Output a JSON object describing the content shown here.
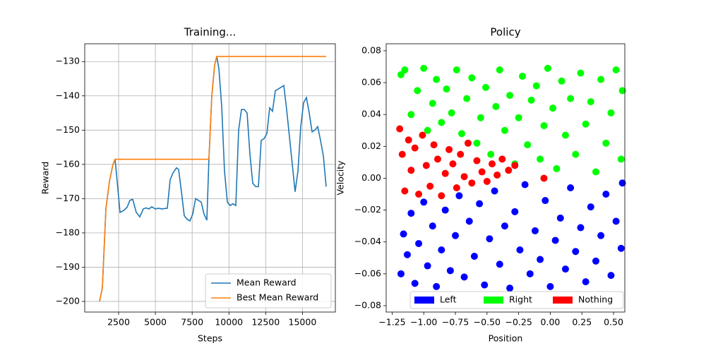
{
  "chart_data": [
    {
      "type": "line",
      "title": "Training...",
      "xlabel": "Steps",
      "ylabel": "Reward",
      "xlim": [
        196,
        17236
      ],
      "ylim": [
        -203.1,
        -124.8
      ],
      "xticks": [
        2500,
        5000,
        7500,
        10000,
        12500,
        15000
      ],
      "yticks": [
        {
          "value": -200,
          "label": "−200"
        },
        {
          "value": -190,
          "label": "−190"
        },
        {
          "value": -180,
          "label": "−180"
        },
        {
          "value": -170,
          "label": "−170"
        },
        {
          "value": -160,
          "label": "−160"
        },
        {
          "value": -150,
          "label": "−150"
        },
        {
          "value": -140,
          "label": "−140"
        },
        {
          "value": -130,
          "label": "−130"
        }
      ],
      "grid": true,
      "legend": "lower right",
      "series": [
        {
          "name": "Mean Reward",
          "color": "#1f77b4",
          "x": [
            1204,
            1396,
            1636,
            1876,
            2116,
            2260,
            2404,
            2596,
            2836,
            3076,
            3268,
            3460,
            3700,
            3940,
            4180,
            4372,
            4564,
            4756,
            4996,
            5236,
            5428,
            5620,
            5812,
            6004,
            6196,
            6436,
            6580,
            6772,
            6964,
            7156,
            7348,
            7540,
            7732,
            7924,
            8116,
            8308,
            8500,
            8644,
            8836,
            9028,
            9172,
            9316,
            9508,
            9700,
            9892,
            10084,
            10276,
            10468,
            10660,
            10852,
            11044,
            11236,
            11428,
            11620,
            11812,
            12004,
            12196,
            12388,
            12580,
            12772,
            12964,
            13156,
            13348,
            13540,
            13732,
            13924,
            14116,
            14308,
            14500,
            14692,
            14884,
            15076,
            15268,
            15460,
            15652,
            15844,
            16036,
            16228,
            16420,
            16612
          ],
          "values": [
            -200,
            -196,
            -173,
            -165,
            -160,
            -158.5,
            -165,
            -174,
            -173.5,
            -172.5,
            -170.5,
            -170.2,
            -174,
            -175.3,
            -173,
            -172.7,
            -173,
            -172.4,
            -173,
            -172.8,
            -173,
            -172.9,
            -172.8,
            -164.5,
            -162.5,
            -161,
            -161.5,
            -168,
            -175,
            -176,
            -176.5,
            -174.5,
            -170,
            -170.5,
            -171,
            -174.5,
            -176.3,
            -158,
            -140,
            -131,
            -128.5,
            -132,
            -143,
            -162,
            -171,
            -172,
            -171.5,
            -172,
            -150,
            -144,
            -144,
            -145,
            -157,
            -165.5,
            -166.5,
            -166.5,
            -153,
            -152.5,
            -151,
            -143.5,
            -144.5,
            -138.5,
            -138,
            -137.5,
            -137,
            -144,
            -152,
            -160,
            -168,
            -162,
            -149,
            -142,
            -140.5,
            -145,
            -150.5,
            -150,
            -149,
            -153,
            -157.5,
            -166.5
          ]
        },
        {
          "name": "Best Mean Reward",
          "color": "#ff7f0e",
          "x": [
            1204,
            1396,
            1636,
            1876,
            2116,
            2260,
            8644,
            8836,
            9028,
            9172,
            16612
          ],
          "values": [
            -200,
            -196,
            -173,
            -165,
            -160,
            -158.5,
            -158.5,
            -140,
            -131,
            -128.5,
            -128.5
          ]
        }
      ]
    },
    {
      "type": "scatter",
      "title": "Policy",
      "xlabel": "Position",
      "ylabel": "Velocity",
      "xlim": [
        -1.297,
        0.589
      ],
      "ylim": [
        -0.084,
        0.0844
      ],
      "xticks": [
        {
          "value": -1.25,
          "label": "−1.25"
        },
        {
          "value": -1,
          "label": "−1.00"
        },
        {
          "value": -0.75,
          "label": "−0.75"
        },
        {
          "value": -0.5,
          "label": "−0.50"
        },
        {
          "value": -0.25,
          "label": "−0.25"
        },
        {
          "value": 0,
          "label": "0.00"
        },
        {
          "value": 0.25,
          "label": "0.25"
        },
        {
          "value": 0.5,
          "label": "0.50"
        }
      ],
      "yticks": [
        {
          "value": -0.08,
          "label": "−0.08"
        },
        {
          "value": -0.06,
          "label": "−0.06"
        },
        {
          "value": -0.04,
          "label": "−0.04"
        },
        {
          "value": -0.02,
          "label": "−0.02"
        },
        {
          "value": 0,
          "label": "0.00"
        },
        {
          "value": 0.02,
          "label": "0.02"
        },
        {
          "value": 0.04,
          "label": "0.04"
        },
        {
          "value": 0.06,
          "label": "0.06"
        },
        {
          "value": 0.08,
          "label": "0.08"
        }
      ],
      "grid": false,
      "legend": "lower center",
      "series": [
        {
          "name": "Left",
          "color": "#0000ff",
          "x": [
            -1.18,
            -1.16,
            -1.13,
            -1.1,
            -1.07,
            -1.04,
            -1.0,
            -0.97,
            -0.93,
            -0.9,
            -0.86,
            -0.83,
            -0.79,
            -0.75,
            -0.72,
            -0.68,
            -0.64,
            -0.6,
            -0.56,
            -0.52,
            -0.48,
            -0.44,
            -0.4,
            -0.36,
            -0.32,
            -0.28,
            -0.24,
            -0.2,
            -0.16,
            -0.12,
            -0.08,
            -0.04,
            0.0,
            0.04,
            0.08,
            0.12,
            0.16,
            0.2,
            0.24,
            0.28,
            0.32,
            0.36,
            0.4,
            0.44,
            0.48,
            0.52,
            0.56,
            0.57
          ],
          "values": [
            -0.06,
            -0.035,
            -0.048,
            -0.022,
            -0.066,
            -0.041,
            -0.015,
            -0.055,
            -0.03,
            -0.068,
            -0.045,
            -0.02,
            -0.058,
            -0.036,
            -0.011,
            -0.062,
            -0.027,
            -0.049,
            -0.016,
            -0.067,
            -0.038,
            -0.008,
            -0.054,
            -0.03,
            -0.069,
            -0.021,
            -0.045,
            -0.004,
            -0.06,
            -0.033,
            -0.051,
            -0.014,
            -0.068,
            -0.039,
            -0.025,
            -0.057,
            -0.006,
            -0.046,
            -0.031,
            -0.065,
            -0.018,
            -0.052,
            -0.036,
            -0.01,
            -0.061,
            -0.027,
            -0.044,
            -0.003
          ]
        },
        {
          "name": "Right",
          "color": "#00ff00",
          "x": [
            -1.18,
            -1.15,
            -1.1,
            -1.05,
            -1.0,
            -0.97,
            -0.93,
            -0.9,
            -0.86,
            -0.82,
            -0.78,
            -0.74,
            -0.7,
            -0.66,
            -0.62,
            -0.58,
            -0.55,
            -0.51,
            -0.47,
            -0.43,
            -0.4,
            -0.36,
            -0.32,
            -0.28,
            -0.25,
            -0.22,
            -0.18,
            -0.15,
            -0.11,
            -0.08,
            -0.05,
            -0.02,
            0.02,
            0.05,
            0.09,
            0.12,
            0.16,
            0.2,
            0.24,
            0.28,
            0.32,
            0.36,
            0.4,
            0.44,
            0.48,
            0.52,
            0.56,
            0.57
          ],
          "values": [
            0.065,
            0.068,
            0.04,
            0.055,
            0.069,
            0.03,
            0.047,
            0.062,
            0.035,
            0.056,
            0.041,
            0.068,
            0.028,
            0.05,
            0.063,
            0.022,
            0.038,
            0.057,
            0.015,
            0.045,
            0.068,
            0.03,
            0.052,
            0.009,
            0.038,
            0.064,
            0.021,
            0.049,
            0.058,
            0.012,
            0.033,
            0.069,
            0.044,
            0.006,
            0.061,
            0.027,
            0.05,
            0.015,
            0.066,
            0.034,
            0.048,
            0.004,
            0.062,
            0.022,
            0.041,
            0.068,
            0.012,
            0.055
          ]
        },
        {
          "name": "Nothing",
          "color": "#ff0000",
          "x": [
            -1.19,
            -1.17,
            -1.15,
            -1.12,
            -1.1,
            -1.07,
            -1.04,
            -1.01,
            -0.98,
            -0.95,
            -0.92,
            -0.89,
            -0.86,
            -0.83,
            -0.8,
            -0.77,
            -0.74,
            -0.71,
            -0.68,
            -0.65,
            -0.62,
            -0.58,
            -0.54,
            -0.5,
            -0.46,
            -0.42,
            -0.38,
            -0.33,
            -0.28,
            -0.05
          ],
          "values": [
            0.031,
            0.015,
            -0.008,
            0.024,
            0.005,
            0.019,
            -0.01,
            0.027,
            0.008,
            -0.005,
            0.021,
            0.012,
            -0.011,
            0.003,
            0.018,
            0.009,
            -0.006,
            0.015,
            0.001,
            0.022,
            -0.003,
            0.011,
            0.004,
            -0.002,
            0.009,
            0.002,
            0.012,
            0.005,
            0.008,
            0.0
          ]
        }
      ]
    }
  ]
}
